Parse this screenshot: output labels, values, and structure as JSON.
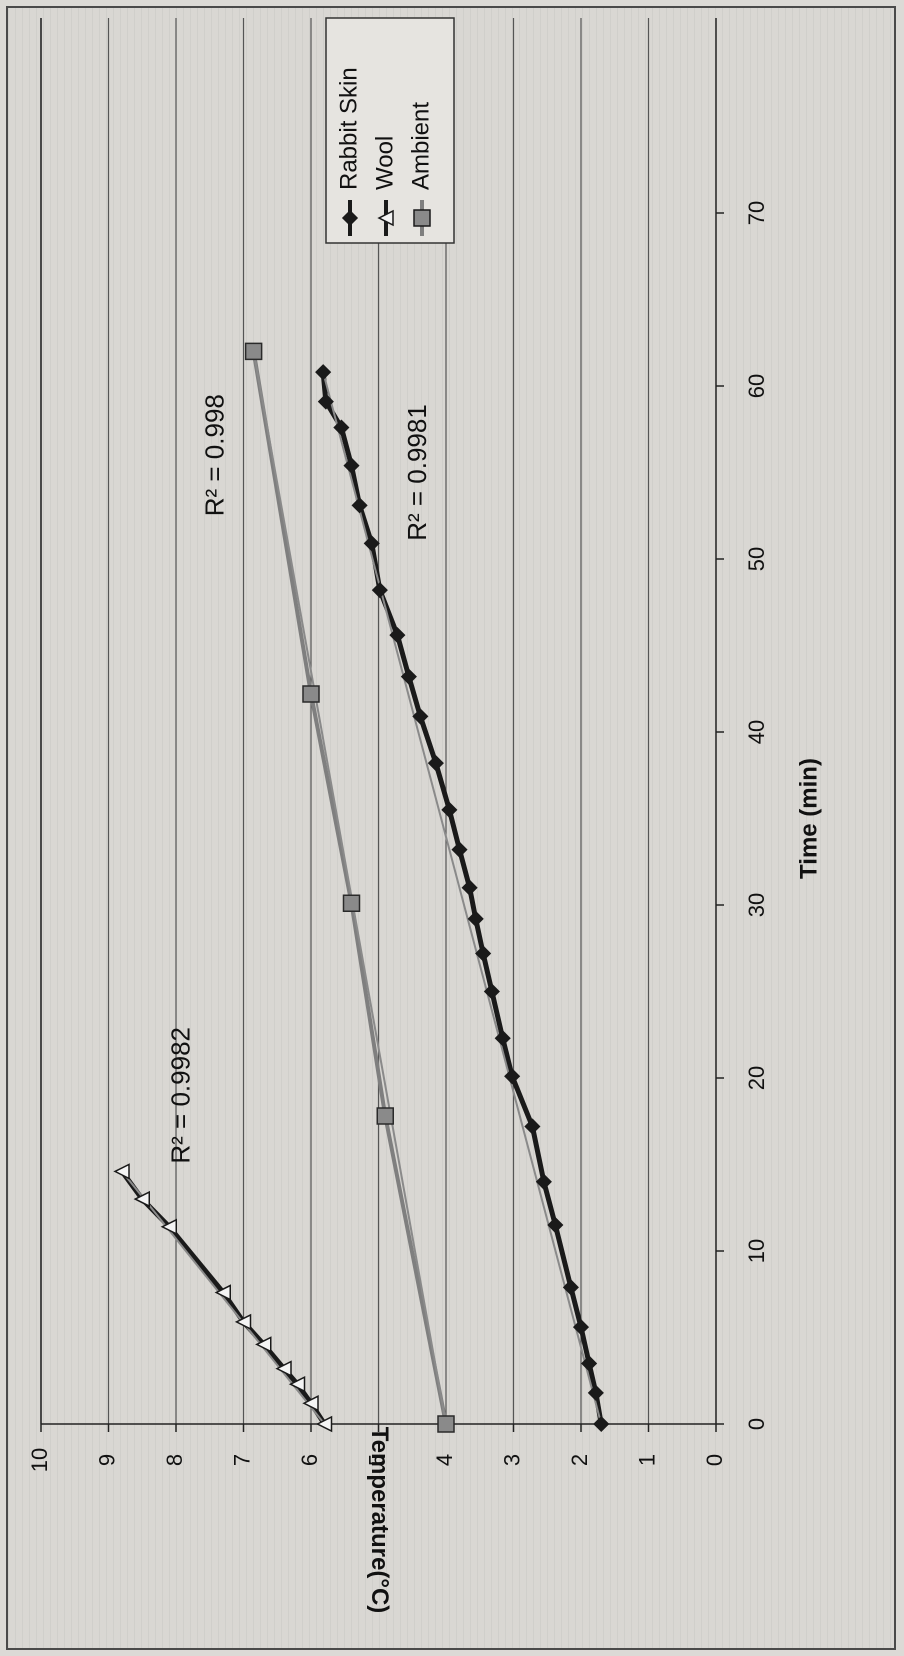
{
  "chart_data": {
    "type": "line",
    "title": "",
    "xlabel": "Time (min)",
    "ylabel": "Temperature(°C)",
    "xlim": [
      0,
      70
    ],
    "ylim": [
      0,
      10
    ],
    "x_ticks": [
      "0",
      "10",
      "20",
      "30",
      "40",
      "50",
      "60",
      "70"
    ],
    "y_ticks": [
      "0",
      "1",
      "2",
      "3",
      "4",
      "5",
      "6",
      "7",
      "8",
      "9",
      "10"
    ],
    "grid": "horizontal",
    "orientation": "rotated-90-clockwise",
    "legend_position": "top-right",
    "series": [
      {
        "name": "Rabbit Skin",
        "marker": "diamond",
        "color": "#1a1a1a",
        "x": [
          0,
          1.8,
          3.5,
          5.6,
          7.9,
          11.5,
          14,
          17.2,
          20.1,
          22.3,
          25,
          27.2,
          29.2,
          31,
          33.2,
          35.5,
          38.2,
          40.9,
          43.2,
          45.6,
          48.2,
          50.9,
          53.1,
          55.4,
          57.6,
          59.1,
          60.8
        ],
        "y": [
          1.7,
          1.78,
          1.88,
          2.0,
          2.15,
          2.38,
          2.55,
          2.72,
          3.02,
          3.16,
          3.32,
          3.45,
          3.56,
          3.65,
          3.8,
          3.95,
          4.15,
          4.38,
          4.55,
          4.72,
          4.98,
          5.1,
          5.28,
          5.4,
          5.55,
          5.78,
          5.82
        ]
      },
      {
        "name": "Wool",
        "marker": "triangle",
        "color": "#1a1a1a",
        "x": [
          0,
          1.2,
          2.3,
          3.2,
          4.6,
          5.9,
          7.6,
          11.4,
          13,
          14.6
        ],
        "y": [
          5.8,
          6.0,
          6.2,
          6.4,
          6.7,
          7.0,
          7.3,
          8.1,
          8.5,
          8.8
        ]
      },
      {
        "name": "Ambient",
        "marker": "square",
        "color": "#7f7f7f",
        "x": [
          0,
          17.8,
          30.1,
          42.2,
          62
        ],
        "y": [
          4.0,
          4.9,
          5.4,
          6.0,
          6.85
        ]
      }
    ],
    "annotations": [
      {
        "text": "R² = 0.9982",
        "near_series": "Wool"
      },
      {
        "text": "R² = 0.998",
        "near_series": "Ambient"
      },
      {
        "text": "R² = 0.9981",
        "near_series": "Rabbit Skin"
      }
    ]
  }
}
